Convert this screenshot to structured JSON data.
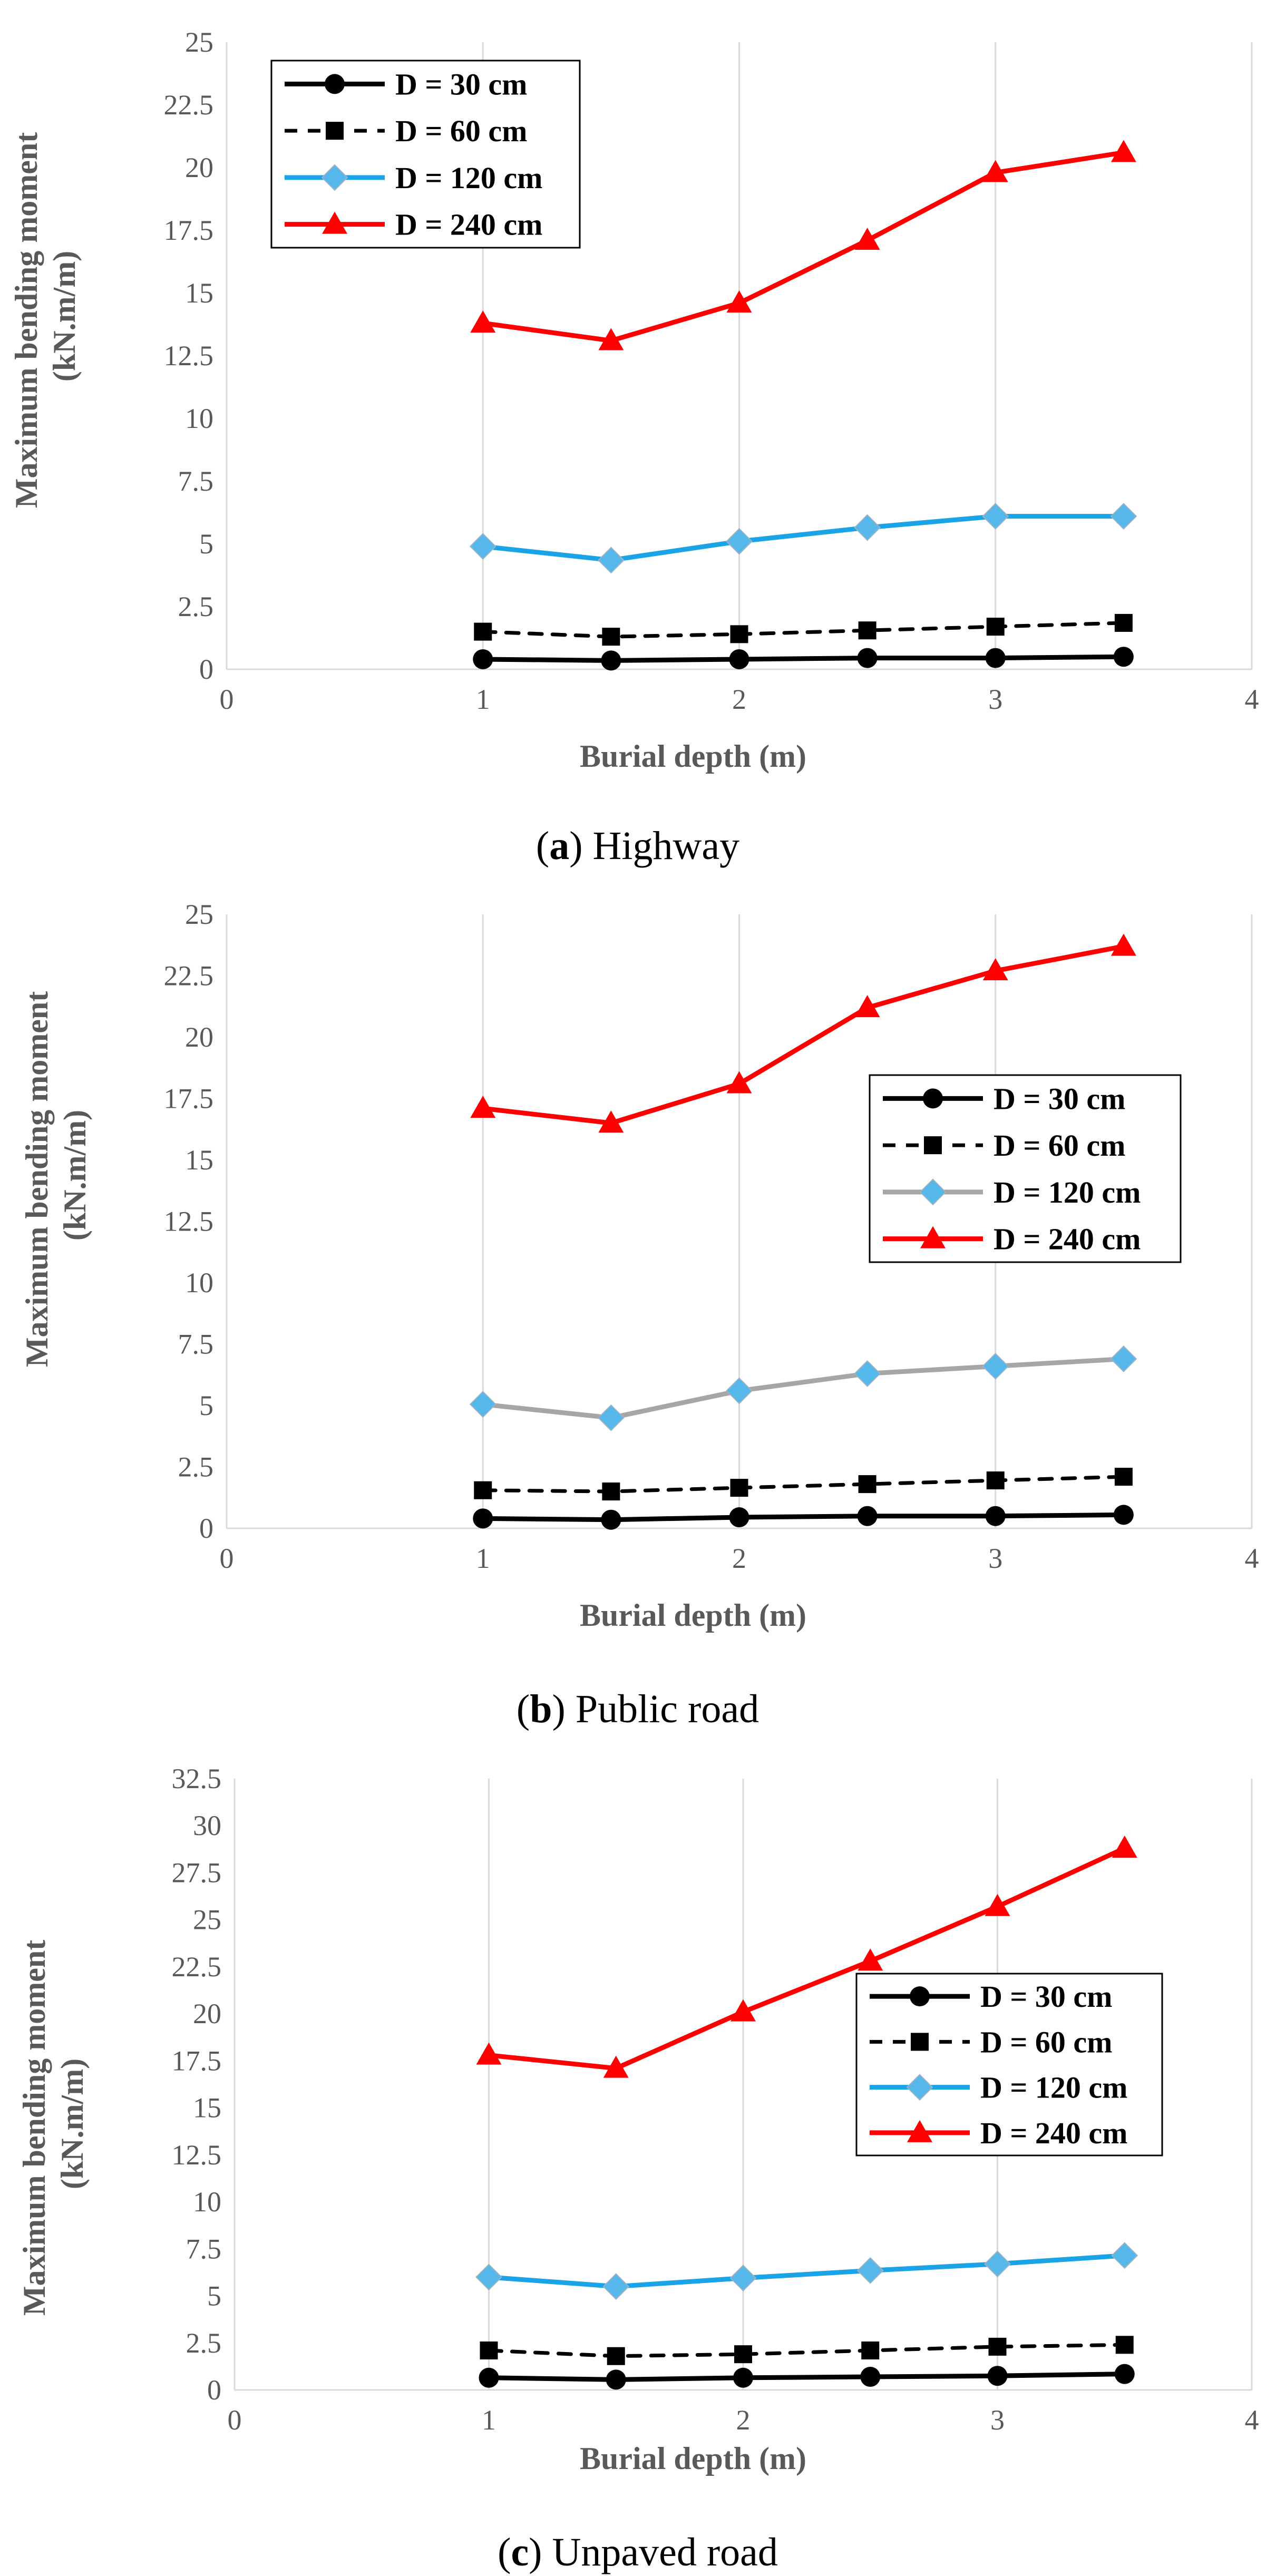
{
  "colors": {
    "d30": "#000000",
    "d60": "#000000",
    "d120_blue": "#1aa3e6",
    "d120_gray": "#a6a6a6",
    "d240": "#ff0000",
    "marker_diamond_fill": "#55b7ea"
  },
  "chart_data": [
    {
      "type": "line",
      "xlabel": "Burial depth (m)",
      "ylabel": "Maximum bending moment",
      "ylabel2": "(kN.m/m)",
      "xlim": [
        0,
        4
      ],
      "ylim": [
        0,
        25
      ],
      "xticks": [
        0,
        1,
        2,
        3,
        4
      ],
      "yticks": [
        0,
        2.5,
        5,
        7.5,
        10,
        12.5,
        15,
        17.5,
        20,
        22.5,
        25
      ],
      "ytick_labels": [
        "0",
        "2.5",
        "5",
        "7.5",
        "10",
        "12.5",
        "15",
        "17.5",
        "20",
        "22.5",
        "25"
      ],
      "legend_position": "top-left",
      "caption": {
        "open": "(",
        "letter": "a",
        "close": ")",
        "text": " Highway"
      },
      "x": [
        1,
        1.5,
        2,
        2.5,
        3,
        3.5
      ],
      "series": [
        {
          "name": "D = 30 cm",
          "values": [
            0.4,
            0.35,
            0.4,
            0.45,
            0.45,
            0.5
          ],
          "style": "d30"
        },
        {
          "name": "D = 60 cm",
          "values": [
            1.5,
            1.3,
            1.4,
            1.55,
            1.7,
            1.85
          ],
          "style": "d60"
        },
        {
          "name": "D = 120 cm",
          "values": [
            4.9,
            4.35,
            5.1,
            5.65,
            6.1,
            6.1
          ],
          "style": "d120_blue"
        },
        {
          "name": "D = 240 cm",
          "values": [
            13.8,
            13.1,
            14.6,
            17.1,
            19.8,
            20.6
          ],
          "style": "d240"
        }
      ]
    },
    {
      "type": "line",
      "xlabel": "Burial depth (m)",
      "ylabel": "Maximum bending moment",
      "ylabel2": "(kN.m/m)",
      "xlim": [
        0,
        4
      ],
      "ylim": [
        0,
        25
      ],
      "xticks": [
        0,
        1,
        2,
        3,
        4
      ],
      "yticks": [
        0,
        2.5,
        5,
        7.5,
        10,
        12.5,
        15,
        17.5,
        20,
        22.5,
        25
      ],
      "ytick_labels": [
        "0",
        "2.5",
        "5",
        "7.5",
        "10",
        "12.5",
        "15",
        "17.5",
        "20",
        "22.5",
        "25"
      ],
      "legend_position": "middle-right",
      "caption": {
        "open": "(",
        "letter": "b",
        "close": ")",
        "text": " Public road"
      },
      "x": [
        1,
        1.5,
        2,
        2.5,
        3,
        3.5
      ],
      "series": [
        {
          "name": "D = 30 cm",
          "values": [
            0.4,
            0.35,
            0.45,
            0.5,
            0.5,
            0.55
          ],
          "style": "d30"
        },
        {
          "name": "D = 60 cm",
          "values": [
            1.55,
            1.5,
            1.65,
            1.8,
            1.95,
            2.1
          ],
          "style": "d60"
        },
        {
          "name": "D = 120 cm",
          "values": [
            5.05,
            4.5,
            5.6,
            6.3,
            6.6,
            6.9
          ],
          "style": "d120_gray"
        },
        {
          "name": "D = 240 cm",
          "values": [
            17.1,
            16.5,
            18.1,
            21.2,
            22.7,
            23.7
          ],
          "style": "d240"
        }
      ]
    },
    {
      "type": "line",
      "xlabel": "Burial depth (m)",
      "ylabel": "Maximum bending moment",
      "ylabel2": "(kN.m/m)",
      "xlim": [
        0,
        4
      ],
      "ylim": [
        0,
        32.5
      ],
      "xticks": [
        0,
        1,
        2,
        3,
        4
      ],
      "yticks": [
        0,
        2.5,
        5,
        7.5,
        10,
        12.5,
        15,
        17.5,
        20,
        22.5,
        25,
        27.5,
        30,
        32.5
      ],
      "ytick_labels": [
        "0",
        "2.5",
        "5",
        "7.5",
        "10",
        "12.5",
        "15",
        "17.5",
        "20",
        "22.5",
        "25",
        "27.5",
        "30",
        "32.5"
      ],
      "legend_position": "middle-right",
      "caption": {
        "open": "(",
        "letter": "c",
        "close": ")",
        "text": " Unpaved road"
      },
      "x": [
        1,
        1.5,
        2,
        2.5,
        3,
        3.5
      ],
      "series": [
        {
          "name": "D = 30 cm",
          "values": [
            0.65,
            0.55,
            0.65,
            0.7,
            0.75,
            0.85
          ],
          "style": "d30"
        },
        {
          "name": "D = 60 cm",
          "values": [
            2.1,
            1.8,
            1.9,
            2.1,
            2.3,
            2.4
          ],
          "style": "d60"
        },
        {
          "name": "D = 120 cm",
          "values": [
            6.0,
            5.5,
            5.95,
            6.35,
            6.7,
            7.15
          ],
          "style": "d120_blue"
        },
        {
          "name": "D = 240 cm",
          "values": [
            17.8,
            17.1,
            20.1,
            22.8,
            25.7,
            28.8
          ],
          "style": "d240"
        }
      ]
    }
  ]
}
